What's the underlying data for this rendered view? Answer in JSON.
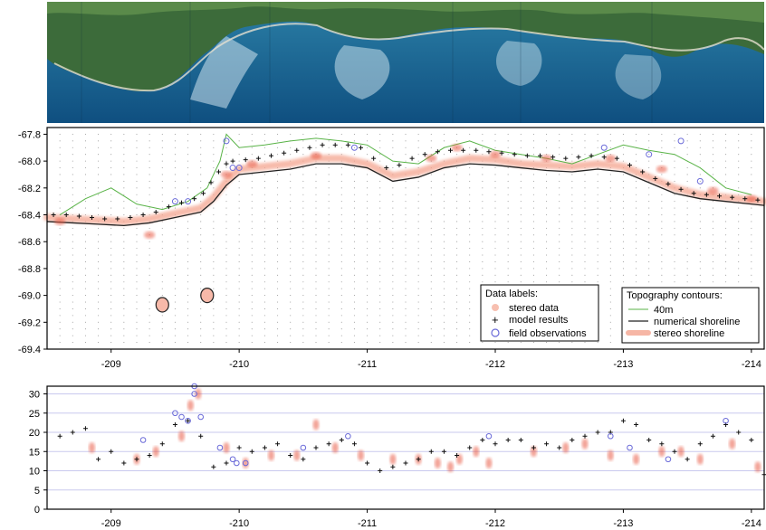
{
  "colors": {
    "stereo": "#e8563f",
    "model": "#111111",
    "field": "#6a6ad8",
    "contour40": "#59b347",
    "shoreline": "#222222",
    "grid": "#c9c9ee",
    "gridDots": "#9a9a9a"
  },
  "image_panel": {
    "icon": "satellite-image",
    "description_visible": false
  },
  "chart_data": [
    {
      "type": "scatter",
      "title": "",
      "xlabel": "",
      "ylabel": "",
      "x_reversed": true,
      "xlim": [
        -208.5,
        -214.1
      ],
      "ylim": [
        -69.4,
        -67.75
      ],
      "x_ticks": [
        "-209",
        "-210",
        "-211",
        "-212",
        "-213",
        "-214"
      ],
      "y_ticks": [
        "-67.8",
        "-68.0",
        "-68.2",
        "-68.4",
        "-68.6",
        "-68.8",
        "-69.0",
        "-69.2",
        "-69.4"
      ],
      "grid": "dotted",
      "legends": [
        {
          "title": "Data labels:",
          "position": "bottom-right",
          "entries": [
            "stereo data",
            "model results",
            "field observations"
          ]
        },
        {
          "title": "Topography contours:",
          "position": "bottom-right",
          "entries": [
            "40m",
            "numerical shoreline",
            "stereo shoreline"
          ]
        }
      ],
      "series": [
        {
          "name": "numerical shoreline",
          "style": "line",
          "x": [
            -208.5,
            -208.7,
            -208.9,
            -209.1,
            -209.3,
            -209.5,
            -209.7,
            -209.8,
            -209.9,
            -210.0,
            -210.2,
            -210.4,
            -210.6,
            -210.8,
            -211.0,
            -211.2,
            -211.4,
            -211.6,
            -211.8,
            -212.0,
            -212.2,
            -212.4,
            -212.6,
            -212.8,
            -213.0,
            -213.2,
            -213.4,
            -213.6,
            -213.8,
            -214.0,
            -214.1
          ],
          "y": [
            -68.45,
            -68.46,
            -68.47,
            -68.48,
            -68.46,
            -68.42,
            -68.38,
            -68.3,
            -68.18,
            -68.1,
            -68.08,
            -68.06,
            -68.02,
            -68.02,
            -68.05,
            -68.15,
            -68.12,
            -68.05,
            -68.02,
            -68.03,
            -68.05,
            -68.07,
            -68.08,
            -68.06,
            -68.08,
            -68.16,
            -68.24,
            -68.28,
            -68.3,
            -68.32,
            -68.33
          ]
        },
        {
          "name": "40m",
          "style": "line",
          "x": [
            -208.6,
            -208.8,
            -209.0,
            -209.2,
            -209.4,
            -209.6,
            -209.75,
            -209.85,
            -209.9,
            -210.0,
            -210.2,
            -210.4,
            -210.6,
            -210.8,
            -211.0,
            -211.2,
            -211.4,
            -211.6,
            -211.8,
            -212.0,
            -212.2,
            -212.4,
            -212.6,
            -212.8,
            -213.0,
            -213.2,
            -213.4,
            -213.6,
            -213.8,
            -214.0
          ],
          "y": [
            -68.4,
            -68.28,
            -68.2,
            -68.32,
            -68.36,
            -68.3,
            -68.2,
            -68.0,
            -67.8,
            -67.9,
            -67.88,
            -67.85,
            -67.83,
            -67.85,
            -67.88,
            -68.0,
            -68.02,
            -67.9,
            -67.85,
            -67.92,
            -67.95,
            -67.98,
            -68.02,
            -67.95,
            -67.88,
            -67.92,
            -67.95,
            -68.05,
            -68.2,
            -68.25
          ]
        },
        {
          "name": "stereo shoreline",
          "style": "band",
          "x": [
            -208.5,
            -208.7,
            -208.9,
            -209.1,
            -209.3,
            -209.5,
            -209.7,
            -209.8,
            -209.9,
            -210.0,
            -210.2,
            -210.4,
            -210.6,
            -210.8,
            -211.0,
            -211.2,
            -211.4,
            -211.6,
            -211.8,
            -212.0,
            -212.2,
            -212.4,
            -212.6,
            -212.8,
            -213.0,
            -213.2,
            -213.4,
            -213.6,
            -213.8,
            -214.0,
            -214.1
          ],
          "y": [
            -68.42,
            -68.43,
            -68.44,
            -68.45,
            -68.43,
            -68.39,
            -68.35,
            -68.27,
            -68.15,
            -68.06,
            -68.04,
            -68.02,
            -67.98,
            -67.98,
            -68.02,
            -68.11,
            -68.08,
            -68.02,
            -67.98,
            -67.99,
            -68.02,
            -68.03,
            -68.04,
            -68.02,
            -68.04,
            -68.12,
            -68.2,
            -68.25,
            -68.27,
            -68.29,
            -68.3
          ]
        },
        {
          "name": "model results",
          "style": "plus",
          "x": [
            -208.55,
            -208.65,
            -208.75,
            -208.85,
            -208.95,
            -209.05,
            -209.15,
            -209.25,
            -209.35,
            -209.45,
            -209.55,
            -209.65,
            -209.72,
            -209.78,
            -209.84,
            -209.9,
            -209.95,
            -210.05,
            -210.15,
            -210.25,
            -210.35,
            -210.45,
            -210.55,
            -210.65,
            -210.75,
            -210.85,
            -210.95,
            -211.05,
            -211.15,
            -211.25,
            -211.35,
            -211.45,
            -211.55,
            -211.65,
            -211.75,
            -211.85,
            -211.95,
            -212.05,
            -212.15,
            -212.25,
            -212.35,
            -212.45,
            -212.55,
            -212.65,
            -212.75,
            -212.85,
            -212.95,
            -213.05,
            -213.15,
            -213.25,
            -213.35,
            -213.45,
            -213.55,
            -213.65,
            -213.75,
            -213.85,
            -213.95,
            -214.05
          ],
          "y": [
            -68.4,
            -68.4,
            -68.41,
            -68.42,
            -68.43,
            -68.43,
            -68.42,
            -68.4,
            -68.38,
            -68.34,
            -68.31,
            -68.28,
            -68.24,
            -68.16,
            -68.08,
            -68.02,
            -68.0,
            -67.99,
            -67.98,
            -67.96,
            -67.94,
            -67.92,
            -67.9,
            -67.88,
            -67.88,
            -67.88,
            -67.9,
            -67.98,
            -68.05,
            -68.03,
            -67.98,
            -67.95,
            -67.93,
            -67.92,
            -67.92,
            -67.92,
            -67.93,
            -67.94,
            -67.95,
            -67.96,
            -67.96,
            -67.97,
            -67.98,
            -67.97,
            -67.96,
            -67.97,
            -67.98,
            -68.03,
            -68.08,
            -68.13,
            -68.17,
            -68.21,
            -68.24,
            -68.25,
            -68.26,
            -68.27,
            -68.28,
            -68.29
          ]
        },
        {
          "name": "field observations",
          "style": "circle",
          "x": [
            -209.5,
            -209.6,
            -209.9,
            -209.95,
            -210.0,
            -210.9,
            -212.85,
            -213.2,
            -213.45,
            -213.6
          ],
          "y": [
            -68.3,
            -68.3,
            -67.85,
            -68.05,
            -68.05,
            -67.9,
            -67.9,
            -67.95,
            -67.85,
            -68.15
          ]
        },
        {
          "name": "stereo data",
          "style": "blob",
          "x": [
            -208.6,
            -209.3,
            -209.9,
            -210.1,
            -210.6,
            -211.5,
            -211.7,
            -212.0,
            -212.4,
            -212.9,
            -213.3,
            -213.7,
            -214.0
          ],
          "y": [
            -68.45,
            -68.55,
            -68.1,
            -68.02,
            -67.96,
            -67.98,
            -67.9,
            -67.95,
            -67.98,
            -67.98,
            -68.06,
            -68.22,
            -68.28
          ]
        }
      ],
      "islands": [
        {
          "x": -209.4,
          "y": -69.07
        },
        {
          "x": -209.75,
          "y": -69.0
        }
      ]
    },
    {
      "type": "scatter",
      "title": "",
      "xlabel": "",
      "ylabel": "",
      "x_reversed": true,
      "xlim": [
        -208.5,
        -214.1
      ],
      "ylim": [
        0,
        32
      ],
      "x_ticks": [
        "-209",
        "-210",
        "-211",
        "-212",
        "-213",
        "-214"
      ],
      "y_ticks": [
        "0",
        "5",
        "10",
        "15",
        "20",
        "25",
        "30"
      ],
      "grid": "horizontal",
      "series": [
        {
          "name": "model results",
          "style": "plus",
          "x": [
            -208.6,
            -208.7,
            -208.8,
            -208.9,
            -209.0,
            -209.1,
            -209.2,
            -209.3,
            -209.4,
            -209.5,
            -209.6,
            -209.7,
            -209.8,
            -209.9,
            -210.0,
            -210.1,
            -210.2,
            -210.3,
            -210.4,
            -210.5,
            -210.6,
            -210.7,
            -210.8,
            -210.9,
            -211.0,
            -211.1,
            -211.2,
            -211.3,
            -211.4,
            -211.5,
            -211.6,
            -211.7,
            -211.8,
            -211.9,
            -212.0,
            -212.1,
            -212.2,
            -212.3,
            -212.4,
            -212.5,
            -212.6,
            -212.7,
            -212.8,
            -212.9,
            -213.0,
            -213.1,
            -213.2,
            -213.3,
            -213.4,
            -213.5,
            -213.6,
            -213.7,
            -213.8,
            -213.9,
            -214.0,
            -214.1
          ],
          "y": [
            19,
            20,
            21,
            13,
            15,
            12,
            13,
            14,
            17,
            22,
            23,
            19,
            11,
            12,
            16,
            15,
            16,
            17,
            14,
            13,
            16,
            17,
            18,
            17,
            12,
            10,
            11,
            12,
            13,
            15,
            15,
            14,
            16,
            18,
            17,
            18,
            18,
            16,
            17,
            16,
            18,
            19,
            20,
            20,
            23,
            22,
            18,
            17,
            15,
            13,
            17,
            19,
            22,
            20,
            18,
            9
          ]
        },
        {
          "name": "field observations",
          "style": "circle",
          "x": [
            -209.25,
            -209.5,
            -209.55,
            -209.6,
            -209.65,
            -209.65,
            -209.7,
            -209.85,
            -209.95,
            -209.98,
            -210.05,
            -210.5,
            -210.85,
            -211.95,
            -212.9,
            -213.05,
            -213.35,
            -213.8
          ],
          "y": [
            18,
            25,
            24,
            23,
            30,
            32,
            24,
            16,
            13,
            12,
            12,
            16,
            19,
            19,
            19,
            16,
            13,
            23
          ]
        },
        {
          "name": "stereo data",
          "style": "blob",
          "x": [
            -208.85,
            -209.2,
            -209.35,
            -209.55,
            -209.62,
            -209.68,
            -209.9,
            -210.05,
            -210.25,
            -210.45,
            -210.6,
            -210.75,
            -210.95,
            -211.2,
            -211.4,
            -211.55,
            -211.65,
            -211.72,
            -211.85,
            -211.95,
            -212.3,
            -212.55,
            -212.7,
            -212.9,
            -213.1,
            -213.3,
            -213.45,
            -213.6,
            -213.85,
            -214.05
          ],
          "y": [
            16,
            13,
            15,
            19,
            27,
            30,
            16,
            12,
            14,
            14,
            22,
            16,
            14,
            13,
            13,
            12,
            11,
            13,
            15,
            12,
            15,
            16,
            17,
            14,
            13,
            15,
            15,
            13,
            17,
            11
          ]
        }
      ]
    }
  ]
}
